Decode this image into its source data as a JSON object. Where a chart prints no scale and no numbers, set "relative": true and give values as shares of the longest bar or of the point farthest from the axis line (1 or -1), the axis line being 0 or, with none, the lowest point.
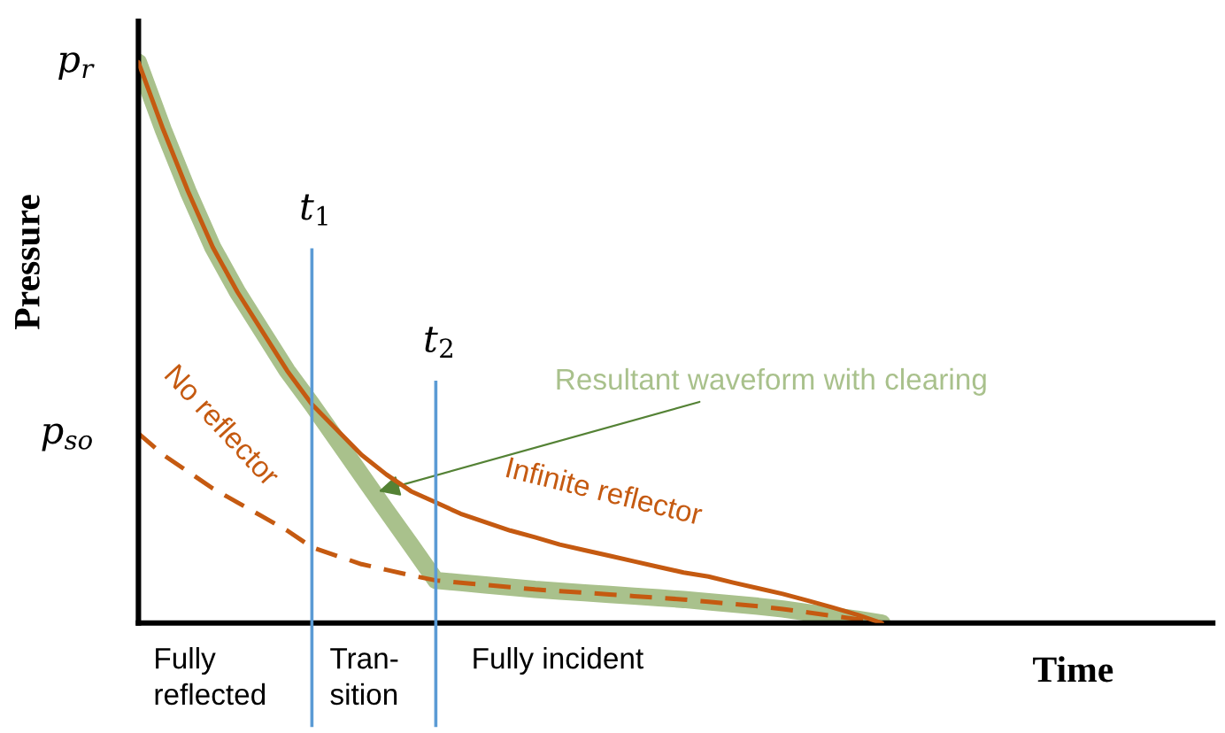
{
  "chart_data": {
    "type": "line",
    "relative": true,
    "xlabel": "Time",
    "ylabel": "Pressure",
    "marker": "none",
    "categories": [
      null,
      null,
      null,
      null,
      null,
      null,
      null,
      null,
      null,
      null,
      null,
      null,
      null,
      null,
      null,
      null,
      null,
      null,
      null,
      null,
      null,
      null,
      null,
      null,
      null,
      null,
      null,
      null,
      null,
      null,
      null,
      null,
      null,
      null,
      null,
      null,
      null,
      null,
      null,
      null,
      null,
      null,
      null,
      null
    ],
    "series": [
      {
        "name": "Resultant waveform with clearing",
        "color": "#a9c18c",
        "values": [
          1.0,
          0.88,
          0.77,
          0.67,
          0.59,
          0.52,
          0.45,
          0.39,
          0.327,
          0.264,
          0.201,
          0.139,
          0.076,
          0.072,
          0.068,
          0.064,
          0.06,
          0.057,
          0.054,
          0.051,
          0.048,
          0.045,
          0.042,
          0.038,
          0.034,
          0.03,
          0.025,
          0.019,
          0.013,
          0.007,
          0,
          null,
          null,
          null,
          null,
          null,
          null,
          null,
          null,
          null,
          null,
          null,
          null,
          null
        ]
      },
      {
        "name": "Infinite reflector",
        "color": "#c55a11",
        "line_style": "solid",
        "values": [
          1.0,
          0.88,
          0.77,
          0.67,
          0.59,
          0.52,
          0.45,
          0.39,
          0.345,
          0.3,
          0.265,
          0.235,
          0.215,
          0.195,
          0.18,
          0.165,
          0.153,
          0.14,
          0.13,
          0.12,
          0.11,
          0.1,
          0.09,
          0.083,
          0.072,
          0.062,
          0.052,
          0.04,
          0.028,
          0.015,
          0,
          null,
          null,
          null,
          null,
          null,
          null,
          null,
          null,
          null,
          null,
          null,
          null,
          null
        ]
      },
      {
        "name": "No reflector",
        "color": "#c55a11",
        "line_style": "dashed",
        "values": [
          0.338,
          0.3,
          0.27,
          0.24,
          0.215,
          0.19,
          0.165,
          0.135,
          0.12,
          0.105,
          0.095,
          0.085,
          0.076,
          0.072,
          0.068,
          0.064,
          0.06,
          0.057,
          0.054,
          0.051,
          0.048,
          0.045,
          0.042,
          0.038,
          0.034,
          0.03,
          0.025,
          0.019,
          0.013,
          0.007,
          0,
          null,
          null,
          null,
          null,
          null,
          null,
          null,
          null,
          null,
          null,
          null,
          null,
          null
        ]
      }
    ],
    "annotations": [
      "t$_{1}$",
      "t$_{2}$",
      "p$_{r}$",
      "p$_{so}$",
      "Fully\nreflected",
      "Tran-\nsition",
      "Fully incident"
    ]
  }
}
